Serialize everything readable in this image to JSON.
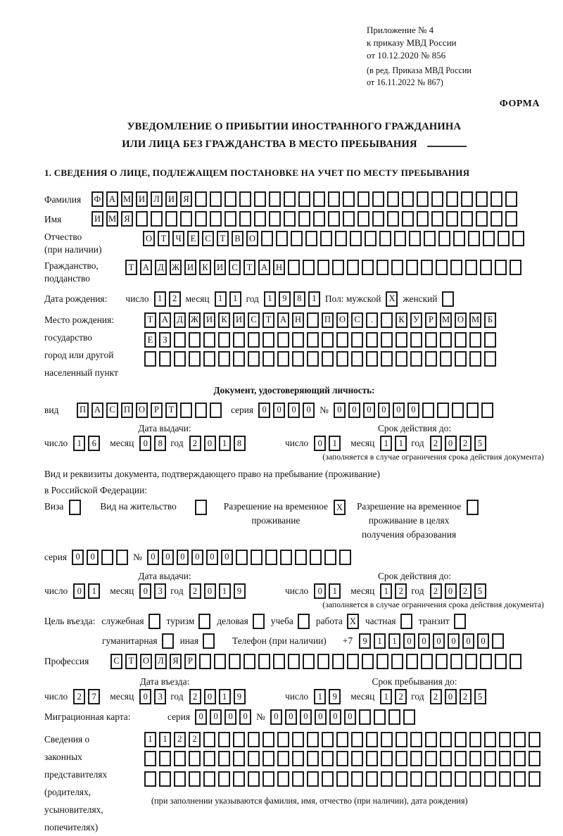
{
  "marks": {
    "checked": "X"
  },
  "page": {
    "appendix": [
      "Приложение № 4",
      "к приказу МВД России",
      "от 10.12.2020 № 856"
    ],
    "amendment": [
      "(в ред. Приказа МВД России",
      "от 16.11.2022 № 867)"
    ],
    "form_label": "ФОРМА",
    "title1": "УВЕДОМЛЕНИЕ О ПРИБЫТИИ ИНОСТРАННОГО ГРАЖДАНИНА",
    "title2": "ИЛИ ЛИЦА БЕЗ ГРАЖДАНСТВА В МЕСТО ПРЕБЫВАНИЯ",
    "section1": "1. СВЕДЕНИЯ О ЛИЦЕ, ПОДЛЕЖАЩЕМ ПОСТАНОВКЕ НА УЧЕТ ПО МЕСТУ ПРЕБЫВАНИЯ"
  },
  "labels": {
    "day": "число",
    "month": "месяц",
    "year": "год",
    "series": "серия",
    "number": "№",
    "issue_date": "Дата выдачи:",
    "valid_until": "Срок действия до:",
    "restriction_note": "(заполняется в случае ограничения срока действия документа)"
  },
  "person": {
    "surname": {
      "label": "Фамилия",
      "text": "ФАМИЛИЯ",
      "len": 29
    },
    "given_name": {
      "label": "Имя",
      "text": "ИМЯ",
      "len": 29
    },
    "patronymic": {
      "label": "Отчество",
      "label2": "(при наличии)",
      "text": "ОТЧЕСТВО",
      "len": 26
    },
    "citizenship": {
      "label": "Гражданство,",
      "label2": "подданство",
      "text": "ТАДЖИКИСТАН",
      "len": 27
    },
    "birth_date_label": "Дата рождения:",
    "birth_day": {
      "text": "12"
    },
    "birth_month": {
      "text": "11"
    },
    "birth_year": {
      "text": "1981"
    },
    "sex_label": "Пол: мужской",
    "sex_male_checked": true,
    "sex_female_label": "женский",
    "sex_female_checked": false,
    "birth_place": {
      "label": "Место рождения:",
      "sub1": "государство",
      "sub2": "город или другой",
      "sub3": "населенный пункт",
      "row1": {
        "text": "ТАДЖИКИСТАН ПОС. КУРМОМБ",
        "len": 24
      },
      "row2": {
        "text": "ЕЗ",
        "len": 24
      },
      "row3": {
        "text": "",
        "len": 24
      }
    }
  },
  "identity_doc": {
    "heading": "Документ, удостоверяющий личность:",
    "kind": {
      "label": "вид",
      "text": "ПАСПОРТ",
      "len": 10
    },
    "series": {
      "text": "0000",
      "len": 4
    },
    "number": {
      "text": "000000",
      "len": 11
    },
    "issue": {
      "day": {
        "text": "16"
      },
      "month": {
        "text": "08"
      },
      "year": {
        "text": "2018"
      }
    },
    "expiry": {
      "day": {
        "text": "01"
      },
      "month": {
        "text": "11"
      },
      "year": {
        "text": "2025"
      }
    }
  },
  "residence_doc": {
    "intro1": "Вид и реквизиты документа, подтверждающего право на пребывание (проживание)",
    "intro2": "в Российской Федерации:",
    "visa": {
      "label": "Виза",
      "checked": false
    },
    "residence_permit": {
      "label": "Вид на жительство",
      "checked": false
    },
    "temp_residence": {
      "line1": "Разрешение на временное",
      "line2": "проживание",
      "checked": true
    },
    "temp_residence_edu": {
      "line1": "Разрешение на временное",
      "line2": "проживание в целях",
      "line3": "получения образования",
      "checked": false
    },
    "series": {
      "text": "00",
      "len": 4
    },
    "number": {
      "text": "000000",
      "len": 14
    },
    "issue": {
      "day": {
        "text": "01"
      },
      "month": {
        "text": "03"
      },
      "year": {
        "text": "2019"
      }
    },
    "expiry": {
      "day": {
        "text": "01"
      },
      "month": {
        "text": "12"
      },
      "year": {
        "text": "2025"
      }
    }
  },
  "visit": {
    "purpose_prefix": "Цель въезда:",
    "options_row1": [
      {
        "label": "служебная",
        "checked": false
      },
      {
        "label": "туризм",
        "checked": false
      },
      {
        "label": "деловая",
        "checked": false
      },
      {
        "label": "учеба",
        "checked": false
      },
      {
        "label": "работа",
        "checked": true
      },
      {
        "label": "частная",
        "checked": false
      },
      {
        "label": "транзит",
        "checked": false
      }
    ],
    "options_row2": [
      {
        "label": "гуманитарная",
        "checked": false
      },
      {
        "label": "иная",
        "checked": false
      }
    ],
    "phone_label": "Телефон (при наличии)",
    "phone_prefix": "+7",
    "phone": {
      "text": "911000000",
      "len": 10
    },
    "profession": {
      "label": "Профессия",
      "text": "СТОЛЯР",
      "len": 28
    }
  },
  "entry": {
    "entry_heading": "Дата въезда:",
    "entry": {
      "day": {
        "text": "27"
      },
      "month": {
        "text": "03"
      },
      "year": {
        "text": "2019"
      }
    },
    "stay_heading": "Срок пребывания до:",
    "stay": {
      "day": {
        "text": "19"
      },
      "month": {
        "text": "12"
      },
      "year": {
        "text": "2025"
      }
    }
  },
  "migration_card": {
    "label": "Миграционная карта:",
    "series": {
      "text": "0000",
      "len": 4
    },
    "number": {
      "text": "000000",
      "len": 10
    }
  },
  "representatives": {
    "l1": "Сведения о",
    "l2": "законных",
    "l3": "представителях",
    "l4": "(родителях,",
    "l5": "усыновителях,",
    "l6": "попечителях)",
    "row1": {
      "text": "1122",
      "len": 27
    },
    "row2": {
      "text": "",
      "len": 27
    },
    "row3": {
      "text": "",
      "len": 27
    },
    "note": "(при заполнении указываются фамилия, имя, отчество (при наличии), дата рождения)"
  }
}
